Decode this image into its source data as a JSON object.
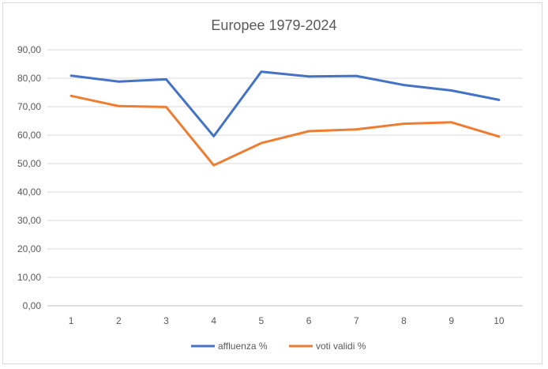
{
  "chart_data": {
    "type": "line",
    "title": "Europee 1979-2024",
    "xlabel": "",
    "ylabel": "",
    "categories": [
      "1",
      "2",
      "3",
      "4",
      "5",
      "6",
      "7",
      "8",
      "9",
      "10"
    ],
    "ylim": [
      0,
      90
    ],
    "yticks": [
      "0,00",
      "10,00",
      "20,00",
      "30,00",
      "40,00",
      "50,00",
      "60,00",
      "70,00",
      "80,00",
      "90,00"
    ],
    "grid": true,
    "legend_position": "bottom",
    "series": [
      {
        "name": "affluenza %",
        "color": "#4472c4",
        "values": [
          80.9,
          78.8,
          79.6,
          59.6,
          82.3,
          80.6,
          80.8,
          77.6,
          75.7,
          72.4
        ]
      },
      {
        "name": "voti validi %",
        "color": "#ed7d31",
        "values": [
          73.8,
          70.2,
          69.9,
          49.4,
          57.2,
          61.4,
          62.0,
          64.0,
          64.5,
          59.5
        ]
      }
    ]
  }
}
